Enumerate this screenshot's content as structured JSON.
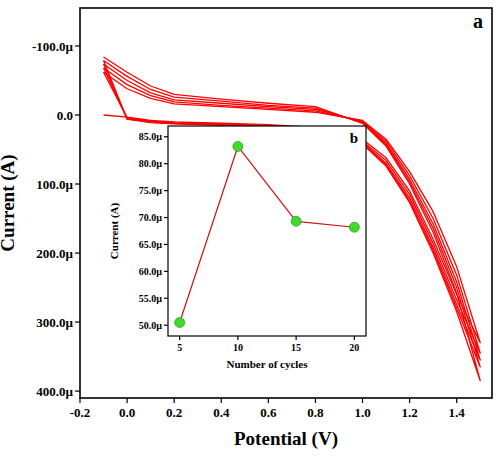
{
  "chart_data": [
    {
      "type": "line",
      "x_label": "Potential (V)",
      "y_label": "Current (A)",
      "annotations": [
        "a"
      ],
      "xlim": [
        -0.2,
        1.55
      ],
      "ylim": [
        -0.000155,
        0.00041
      ],
      "xticks": [
        -0.2,
        {
          "value": 0,
          "label": "0.0"
        },
        0.2,
        0.4,
        0.6,
        0.8,
        {
          "value": 1,
          "label": "1.0"
        },
        1.2,
        1.4
      ],
      "yticks": [
        {
          "value": -0.0001,
          "label": "-100.0µ"
        },
        {
          "value": 0,
          "label": "0.0"
        },
        {
          "value": 0.0001,
          "label": "100.0µ"
        },
        {
          "value": 0.0002,
          "label": "200.0µ"
        },
        {
          "value": 0.0003,
          "label": "300.0µ"
        },
        {
          "value": 0.0004,
          "label": "400.0µ"
        }
      ],
      "y_inverted": true,
      "grid": false,
      "series": [
        {
          "color": "#ff0000",
          "x": [
            -0.1,
            0,
            0.1,
            0.2,
            0.4,
            0.6,
            0.8,
            1.0,
            1.1,
            1.2,
            1.3,
            1.4,
            1.5,
            1.4,
            1.3,
            1.2,
            1.1,
            1.0,
            0.8,
            0.6,
            0.4,
            0.2,
            0.1,
            0,
            -0.1
          ],
          "values": [
            0,
            3e-06,
            8e-06,
            1e-05,
            1.2e-05,
            1.4e-05,
            1.8e-05,
            3.5e-05,
            6.2e-05,
            0.00011,
            0.00018,
            0.00026,
            0.00033,
            0.00022,
            0.00014,
            8.2e-05,
            3.5e-05,
            8e-06,
            -4e-06,
            -8e-06,
            -1.2e-05,
            -1.6e-05,
            -2.4e-05,
            -3.8e-05,
            -6.2e-05
          ]
        },
        {
          "color": "#ff0000",
          "x": [
            -0.1,
            0,
            0.1,
            0.2,
            0.4,
            0.6,
            0.8,
            1.0,
            1.1,
            1.2,
            1.3,
            1.4,
            1.5,
            1.4,
            1.3,
            1.2,
            1.1,
            1.0,
            0.8,
            0.6,
            0.4,
            0.2,
            0.1,
            0,
            -0.1
          ],
          "values": [
            -6.2e-05,
            4e-06,
            9e-06,
            1.1e-05,
            1.3e-05,
            1.5e-05,
            2e-05,
            3.8e-05,
            6.6e-05,
            0.000115,
            0.000186,
            0.000268,
            0.000345,
            0.000232,
            0.00015,
            8.8e-05,
            3.8e-05,
            9e-06,
            -6e-06,
            -1e-05,
            -1.4e-05,
            -1.9e-05,
            -2.8e-05,
            -4.4e-05,
            -6.8e-05
          ]
        },
        {
          "color": "#ff0000",
          "x": [
            -0.1,
            0,
            0.1,
            0.2,
            0.4,
            0.6,
            0.8,
            1.0,
            1.1,
            1.2,
            1.3,
            1.4,
            1.5,
            1.4,
            1.3,
            1.2,
            1.1,
            1.0,
            0.8,
            0.6,
            0.4,
            0.2,
            0.1,
            0,
            -0.1
          ],
          "values": [
            -6.8e-05,
            5e-06,
            1e-05,
            1.2e-05,
            1.4e-05,
            1.6e-05,
            2.1e-05,
            4e-05,
            7e-05,
            0.00012,
            0.000192,
            0.000275,
            0.000355,
            0.000242,
            0.000158,
            9.3e-05,
            4.1e-05,
            1e-05,
            -8e-06,
            -1.2e-05,
            -1.7e-05,
            -2.2e-05,
            -3.2e-05,
            -5e-05,
            -7.4e-05
          ]
        },
        {
          "color": "#ff0000",
          "x": [
            -0.1,
            0,
            0.1,
            0.2,
            0.4,
            0.6,
            0.8,
            1.0,
            1.1,
            1.2,
            1.3,
            1.4,
            1.5,
            1.4,
            1.3,
            1.2,
            1.1,
            1.0,
            0.8,
            0.6,
            0.4,
            0.2,
            0.1,
            0,
            -0.1
          ],
          "values": [
            -7.4e-05,
            6e-06,
            1e-05,
            1.2e-05,
            1.4e-05,
            1.7e-05,
            2.2e-05,
            4.1e-05,
            7.2e-05,
            0.000124,
            0.000196,
            0.00028,
            0.000365,
            0.00025,
            0.000164,
            9.7e-05,
            4.3e-05,
            1.1e-05,
            -1e-05,
            -1.4e-05,
            -2e-05,
            -2.6e-05,
            -3.7e-05,
            -5.6e-05,
            -7.9e-05
          ]
        },
        {
          "color": "#ff0000",
          "x": [
            -0.1,
            0,
            0.1,
            0.2,
            0.4,
            0.6,
            0.8,
            1.0,
            1.1,
            1.2,
            1.3,
            1.4,
            1.5,
            1.4,
            1.3,
            1.2,
            1.1,
            1.0,
            0.8,
            0.6,
            0.4,
            0.2,
            0.1,
            0,
            -0.1
          ],
          "values": [
            -7.9e-05,
            6e-06,
            1.1e-05,
            1.3e-05,
            1.5e-05,
            1.8e-05,
            2.3e-05,
            4.2e-05,
            7.4e-05,
            0.000127,
            0.0002,
            0.000285,
            0.000385,
            0.000258,
            0.00017,
            0.0001,
            4.5e-05,
            1.2e-05,
            -1.2e-05,
            -1.7e-05,
            -2.3e-05,
            -3e-05,
            -4.2e-05,
            -6.2e-05,
            -8.4e-05
          ]
        }
      ]
    },
    {
      "type": "line",
      "x_label": "Number of cycles",
      "y_label": "Current (A)",
      "annotations": [
        "b"
      ],
      "xlim": [
        4,
        21
      ],
      "ylim": [
        4.8e-05,
        8.7e-05
      ],
      "xticks": [
        5,
        10,
        15,
        20
      ],
      "yticks": [
        {
          "value": 5e-05,
          "label": "50.0µ"
        },
        {
          "value": 5.5e-05,
          "label": "55.0µ"
        },
        {
          "value": 6e-05,
          "label": "60.0µ"
        },
        {
          "value": 6.5e-05,
          "label": "65.0µ"
        },
        {
          "value": 7e-05,
          "label": "70.0µ"
        },
        {
          "value": 7.5e-05,
          "label": "75.0µ"
        },
        {
          "value": 8e-05,
          "label": "80.0µ"
        },
        {
          "value": 8.5e-05,
          "label": "85.0µ"
        }
      ],
      "grid": false,
      "series": [
        {
          "color": "#cc1111",
          "marker": "circle",
          "colors": [
            "#3ddc2a",
            "#3ddc2a",
            "#3ddc2a",
            "#3ddc2a"
          ],
          "x": [
            5,
            10,
            15,
            20
          ],
          "values": [
            5.05e-05,
            8.32e-05,
            6.93e-05,
            6.82e-05
          ]
        }
      ]
    }
  ]
}
